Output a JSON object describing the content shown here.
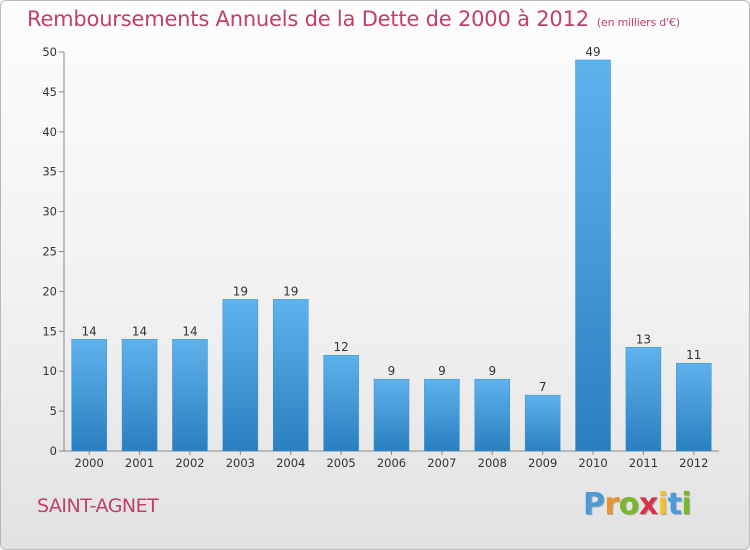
{
  "header": {
    "title": "Remboursements Annuels de la Dette de 2000 à 2012",
    "unit": "(en milliers d'€)"
  },
  "footer": {
    "town": "SAINT-AGNET",
    "logo_letters": [
      "P",
      "r",
      "o",
      "x",
      "i",
      "t",
      "i"
    ]
  },
  "colors": {
    "title": "#c0406a",
    "bar_top": "#5fb2ec",
    "bar_bottom": "#2a7fc0",
    "logo": [
      "#4b9bd8",
      "#e8932c",
      "#76b82a",
      "#d8304f",
      "#f2c12e",
      "#4b9bd8",
      "#76b82a"
    ]
  },
  "chart_data": {
    "type": "bar",
    "categories": [
      "2000",
      "2001",
      "2002",
      "2003",
      "2004",
      "2005",
      "2006",
      "2007",
      "2008",
      "2009",
      "2010",
      "2011",
      "2012"
    ],
    "values": [
      14,
      14,
      14,
      19,
      19,
      12,
      9,
      9,
      9,
      7,
      49,
      13,
      11
    ],
    "data_labels": [
      "14",
      "14",
      "14",
      "19",
      "19",
      "12",
      "9",
      "9",
      "9",
      "7",
      "49",
      "13",
      "11"
    ],
    "title": "Remboursements Annuels de la Dette de 2000 à 2012",
    "xlabel": "",
    "ylabel": "",
    "ylim": [
      0,
      50
    ],
    "yticks": [
      "0",
      "5",
      "10",
      "15",
      "20",
      "25",
      "30",
      "35",
      "40",
      "45",
      "50"
    ],
    "grid": false,
    "legend": "none"
  }
}
